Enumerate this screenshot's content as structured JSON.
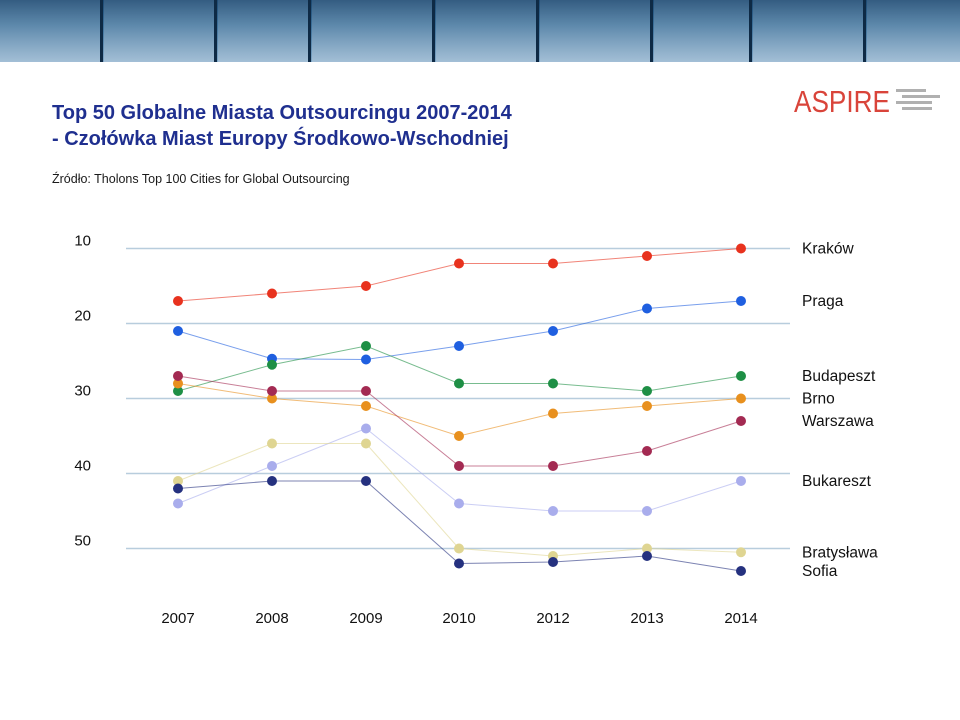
{
  "title_line1": "Top 50 Globalne Miasta Outsourcingu 2007-2014",
  "title_line2": "- Czołówka Miast Europy Środkowo-Wschodniej",
  "source": "Źródło: Tholons Top 100 Cities for Global Outsourcing",
  "logo_text": "ASPIRE",
  "colors": {
    "title": "#1f2f8f",
    "logo": "#d9443a",
    "grid": "#b8cddd"
  },
  "chart_data": {
    "type": "line",
    "title": "",
    "xlabel": "",
    "ylabel": "",
    "categories": [
      "2007",
      "2008",
      "2009",
      "2010",
      "2012",
      "2013",
      "2014"
    ],
    "y_ticks": [
      10,
      20,
      30,
      40,
      50
    ],
    "ylim": [
      50,
      10
    ],
    "y_inverted": true,
    "grid": true,
    "legend": "right-end labels",
    "series": [
      {
        "name": "Kraków",
        "color": "#e8321e",
        "values": [
          17,
          16,
          15,
          12,
          12,
          11,
          10
        ]
      },
      {
        "name": "Praga",
        "color": "#1f5fe0",
        "values": [
          21,
          24.7,
          24.8,
          23,
          21,
          18,
          17
        ]
      },
      {
        "name": "Budapeszt",
        "color": "#1e8f45",
        "values": [
          29,
          25.5,
          23,
          28,
          28,
          29,
          27
        ]
      },
      {
        "name": "Brno",
        "color": "#e8901e",
        "values": [
          28,
          30,
          31,
          35,
          32,
          31,
          30
        ]
      },
      {
        "name": "Warszawa",
        "color": "#a32a52",
        "values": [
          27,
          29,
          29,
          39,
          39,
          37,
          33
        ]
      },
      {
        "name": "Bukareszt",
        "color": "#a9adec",
        "values": [
          44,
          39,
          34,
          44,
          45,
          45,
          41
        ]
      },
      {
        "name": "Bratysława",
        "color": "#dfd592",
        "values": [
          41,
          36,
          36,
          50,
          51,
          50,
          50.5
        ]
      },
      {
        "name": "Sofia",
        "color": "#25317f",
        "values": [
          42,
          41,
          41,
          52,
          51.8,
          51,
          53
        ]
      }
    ],
    "end_labels": [
      {
        "text": "Kraków",
        "value": 10
      },
      {
        "text": "Praga",
        "value": 17
      },
      {
        "text": "Budapeszt",
        "value": 27
      },
      {
        "text": "Brno",
        "value": 30
      },
      {
        "text": "Warszawa",
        "value": 33
      },
      {
        "text": "Bukareszt",
        "value": 41
      },
      {
        "text": "Bratysława",
        "value": 50.5
      },
      {
        "text": "Sofia",
        "value": 53
      }
    ]
  }
}
